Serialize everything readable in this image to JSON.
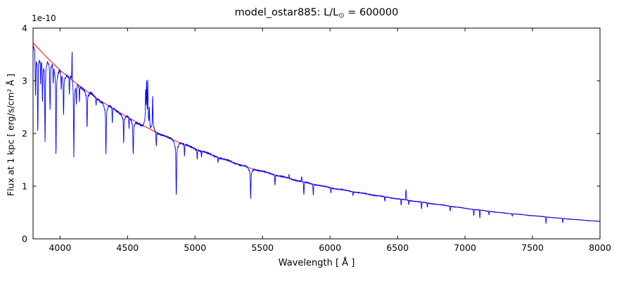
{
  "figure": {
    "title": {
      "prefix": "model_ostar885: L/L",
      "sub": "⊙",
      "suffix": " = 600000"
    },
    "xlabel": "Wavelength [ Å ]",
    "ylabel": "Flux at 1 kpc [ erg/s/cm² Å ]",
    "offset_text": "1e-10"
  },
  "chart_data": {
    "type": "line",
    "title": "model_ostar885: L/L⊙ = 600000",
    "xlabel": "Wavelength [ Å ]",
    "ylabel": "Flux at 1 kpc [ erg/s/cm² Å ]",
    "y_scale_factor": "1e-10",
    "xlim": [
      3800,
      8000
    ],
    "ylim": [
      0,
      4
    ],
    "x_ticks": [
      4000,
      4500,
      5000,
      5500,
      6000,
      6500,
      7000,
      7500,
      8000
    ],
    "y_ticks": [
      0,
      1,
      2,
      3,
      4
    ],
    "grid": false,
    "legend": "none",
    "series": [
      {
        "name": "model spectrum",
        "color": "#0000ff"
      },
      {
        "name": "smooth continuum fit",
        "color": "#ff0000"
      }
    ],
    "continuum": {
      "x": [
        3800,
        3900,
        4000,
        4100,
        4200,
        4300,
        4400,
        4500,
        4600,
        4700,
        4800,
        4900,
        5000,
        5200,
        5400,
        5600,
        5800,
        6000,
        6250,
        6500,
        6750,
        7000,
        7250,
        7500,
        7750,
        8000
      ],
      "y": [
        3.72,
        3.45,
        3.2,
        2.99,
        2.8,
        2.62,
        2.46,
        2.31,
        2.17,
        2.04,
        1.92,
        1.81,
        1.71,
        1.52,
        1.35,
        1.21,
        1.08,
        0.97,
        0.86,
        0.76,
        0.67,
        0.58,
        0.5,
        0.44,
        0.38,
        0.33
      ]
    },
    "lines_format": [
      "wavelength_angstrom",
      "amplitude_1e-10 (negative = absorption, positive = emission)",
      "width_angstrom"
    ],
    "lines": [
      [
        3818,
        -0.75,
        3
      ],
      [
        3835,
        -1.3,
        3
      ],
      [
        3856,
        -0.45,
        2.5
      ],
      [
        3870,
        -0.7,
        3
      ],
      [
        3889,
        -1.35,
        3
      ],
      [
        3926,
        -0.8,
        3
      ],
      [
        3949,
        -0.35,
        2.5
      ],
      [
        3970,
        -1.4,
        3
      ],
      [
        4009,
        -0.3,
        2.5
      ],
      [
        4026,
        -0.65,
        3
      ],
      [
        4069,
        -0.35,
        2.5
      ],
      [
        4089,
        0.55,
        2
      ],
      [
        4102,
        -1.25,
        3
      ],
      [
        4121,
        -0.35,
        2.5
      ],
      [
        4144,
        -0.28,
        2.5
      ],
      [
        4200,
        -0.6,
        3
      ],
      [
        4267,
        -0.15,
        2.5
      ],
      [
        4340,
        -0.8,
        3
      ],
      [
        4387,
        -0.32,
        2.5
      ],
      [
        4471,
        -0.45,
        2.5
      ],
      [
        4511,
        -0.22,
        2.5
      ],
      [
        4542,
        -0.55,
        3
      ],
      [
        4634,
        0.5,
        2.5
      ],
      [
        4641,
        0.62,
        2.5
      ],
      [
        4650,
        0.7,
        2.5
      ],
      [
        4662,
        0.35,
        2.5
      ],
      [
        4686,
        0.55,
        2.5
      ],
      [
        4713,
        -0.28,
        2.5
      ],
      [
        4861,
        -0.85,
        3
      ],
      [
        4922,
        -0.22,
        2.5
      ],
      [
        5016,
        -0.18,
        2.5
      ],
      [
        5048,
        -0.1,
        2.5
      ],
      [
        5170,
        -0.1,
        2.5
      ],
      [
        5412,
        -0.5,
        3
      ],
      [
        5592,
        -0.2,
        2.5
      ],
      [
        5696,
        0.08,
        2.5
      ],
      [
        5790,
        0.1,
        2.5
      ],
      [
        5806,
        -0.25,
        3
      ],
      [
        5876,
        -0.2,
        2.5
      ],
      [
        6006,
        -0.1,
        2.5
      ],
      [
        6170,
        -0.07,
        2.5
      ],
      [
        6406,
        -0.09,
        2.5
      ],
      [
        6527,
        -0.12,
        2.5
      ],
      [
        6563,
        0.2,
        3
      ],
      [
        6583,
        -0.08,
        2.5
      ],
      [
        6678,
        -0.14,
        2.5
      ],
      [
        6721,
        -0.08,
        2.5
      ],
      [
        6890,
        -0.09,
        2.5
      ],
      [
        7065,
        -0.12,
        2.5
      ],
      [
        7110,
        -0.16,
        2.5
      ],
      [
        7178,
        -0.07,
        2.5
      ],
      [
        7350,
        -0.05,
        2.5
      ],
      [
        7600,
        -0.13,
        2.5
      ],
      [
        7724,
        -0.08,
        2.5
      ]
    ]
  }
}
